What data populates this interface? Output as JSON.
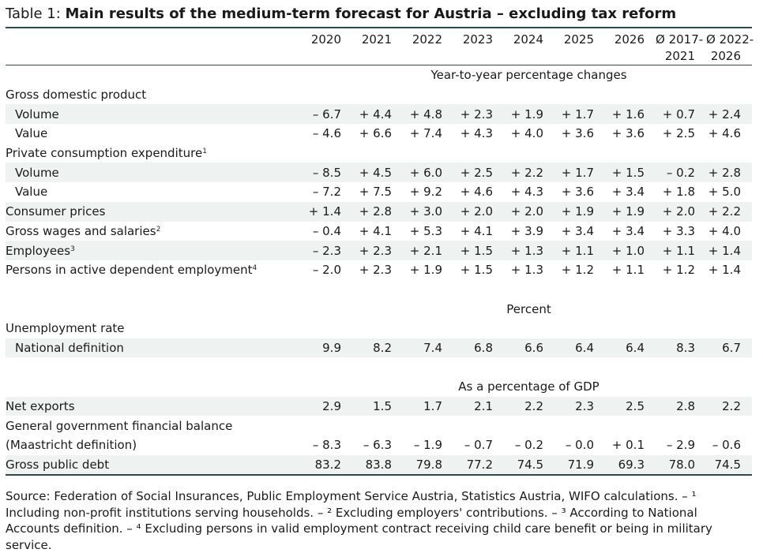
{
  "title": {
    "prefix": "Table 1: ",
    "text": "Main results of the medium-term forecast for Austria – excluding tax reform"
  },
  "columns": [
    {
      "line1": "2020",
      "line2": ""
    },
    {
      "line1": "2021",
      "line2": ""
    },
    {
      "line1": "2022",
      "line2": ""
    },
    {
      "line1": "2023",
      "line2": ""
    },
    {
      "line1": "2024",
      "line2": ""
    },
    {
      "line1": "2025",
      "line2": ""
    },
    {
      "line1": "2026",
      "line2": ""
    },
    {
      "line1": "Ø 2017-",
      "line2": "2021"
    },
    {
      "line1": "Ø 2022-",
      "line2": "2026"
    }
  ],
  "sections": [
    {
      "unit": "Year-to-year percentage changes",
      "rows": [
        {
          "label": "Gross domestic product",
          "note": "",
          "indent": false,
          "shade": false,
          "values": []
        },
        {
          "label": "Volume",
          "note": "",
          "indent": true,
          "shade": true,
          "values": [
            "– 6.7",
            "+ 4.4",
            "+ 4.8",
            "+ 2.3",
            "+ 1.9",
            "+ 1.7",
            "+ 1.6",
            "+ 0.7",
            "+ 2.4"
          ]
        },
        {
          "label": "Value",
          "note": "",
          "indent": true,
          "shade": false,
          "values": [
            "– 4.6",
            "+ 6.6",
            "+ 7.4",
            "+ 4.3",
            "+ 4.0",
            "+ 3.6",
            "+ 3.6",
            "+ 2.5",
            "+ 4.6"
          ]
        },
        {
          "label": "Private consumption expenditure",
          "note": "1",
          "indent": false,
          "shade": false,
          "values": []
        },
        {
          "label": "Volume",
          "note": "",
          "indent": true,
          "shade": true,
          "values": [
            "– 8.5",
            "+ 4.5",
            "+ 6.0",
            "+ 2.5",
            "+ 2.2",
            "+ 1.7",
            "+ 1.5",
            "– 0.2",
            "+ 2.8"
          ]
        },
        {
          "label": "Value",
          "note": "",
          "indent": true,
          "shade": false,
          "values": [
            "– 7.2",
            "+ 7.5",
            "+ 9.2",
            "+ 4.6",
            "+ 4.3",
            "+ 3.6",
            "+ 3.4",
            "+ 1.8",
            "+ 5.0"
          ]
        },
        {
          "label": "Consumer prices",
          "note": "",
          "indent": false,
          "shade": true,
          "values": [
            "+ 1.4",
            "+ 2.8",
            "+ 3.0",
            "+ 2.0",
            "+ 2.0",
            "+ 1.9",
            "+ 1.9",
            "+ 2.0",
            "+ 2.2"
          ]
        },
        {
          "label": "Gross wages and salaries",
          "note": "2",
          "indent": false,
          "shade": false,
          "values": [
            "– 0.4",
            "+ 4.1",
            "+ 5.3",
            "+ 4.1",
            "+ 3.9",
            "+ 3.4",
            "+ 3.4",
            "+ 3.3",
            "+ 4.0"
          ]
        },
        {
          "label": "Employees",
          "note": "3",
          "indent": false,
          "shade": true,
          "values": [
            "– 2.3",
            "+ 2.3",
            "+ 2.1",
            "+ 1.5",
            "+ 1.3",
            "+ 1.1",
            "+ 1.0",
            "+ 1.1",
            "+ 1.4"
          ]
        },
        {
          "label": "Persons in active dependent employment",
          "note": "4",
          "indent": false,
          "shade": false,
          "values": [
            "– 2.0",
            "+ 2.3",
            "+ 1.9",
            "+ 1.5",
            "+ 1.3",
            "+ 1.2",
            "+ 1.1",
            "+ 1.2",
            "+ 1.4"
          ]
        }
      ]
    },
    {
      "unit": "Percent",
      "rows": [
        {
          "label": "Unemployment rate",
          "note": "",
          "indent": false,
          "shade": false,
          "values": []
        },
        {
          "label": "National definition",
          "note": "",
          "indent": true,
          "shade": true,
          "values": [
            "9.9",
            "8.2",
            "7.4",
            "6.8",
            "6.6",
            "6.4",
            "6.4",
            "8.3",
            "6.7"
          ]
        }
      ]
    },
    {
      "unit": "As a percentage of GDP",
      "rows": [
        {
          "label": "Net exports",
          "note": "",
          "indent": false,
          "shade": true,
          "values": [
            "2.9",
            "1.5",
            "1.7",
            "2.1",
            "2.2",
            "2.3",
            "2.5",
            "2.8",
            "2.2"
          ]
        },
        {
          "label": "General government financial balance",
          "note": "",
          "indent": false,
          "shade": false,
          "values": []
        },
        {
          "label": "(Maastricht definition)",
          "note": "",
          "indent": false,
          "shade": false,
          "values": [
            "– 8.3",
            "– 6.3",
            "– 1.9",
            "– 0.7",
            "– 0.2",
            "– 0.0",
            "+ 0.1",
            "– 2.9",
            "– 0.6"
          ]
        },
        {
          "label": "Gross public debt",
          "note": "",
          "indent": false,
          "shade": true,
          "values": [
            "83.2",
            "83.8",
            "79.8",
            "77.2",
            "74.5",
            "71.9",
            "69.3",
            "78.0",
            "74.5"
          ]
        }
      ]
    }
  ],
  "footnote": "Source: Federation of Social Insurances, Public Employment Service Austria, Statistics Austria, WIFO calculations. – ¹ Including non-profit institutions serving households. – ² Excluding employers' contributions. – ³ According to National Accounts definition. – ⁴ Excluding persons in valid employment contract receiving child care benefit or being in military service."
}
